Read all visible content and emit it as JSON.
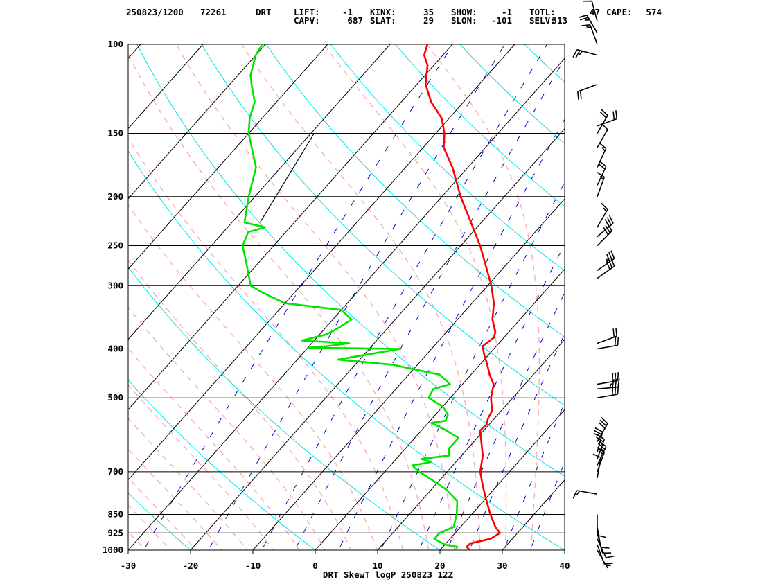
{
  "header": {
    "line1": [
      {
        "text": "250823/1200"
      },
      {
        "text": "72261"
      },
      {
        "text": "DRT"
      },
      {
        "text": "LIFT:"
      },
      {
        "text": "-1"
      },
      {
        "text": "KINX:"
      },
      {
        "text": "35"
      },
      {
        "text": "SHOW:"
      },
      {
        "text": "-1"
      },
      {
        "text": "TOTL:"
      },
      {
        "text": "47"
      },
      {
        "text": "CAPE:"
      },
      {
        "text": "574"
      }
    ],
    "line2": [
      {
        "text": "CAPV:"
      },
      {
        "text": "687"
      },
      {
        "text": "SLAT:"
      },
      {
        "text": "29"
      },
      {
        "text": "SLON:"
      },
      {
        "text": "-101"
      },
      {
        "text": "SELV:"
      },
      {
        "text": "313"
      }
    ]
  },
  "chart_data": {
    "type": "line",
    "title": "DRT SkewT logP 250823 12Z",
    "xlabel": "",
    "ylabel": "",
    "x_axis": {
      "label_values": [
        -30,
        -20,
        -10,
        0,
        10,
        20,
        30,
        40
      ],
      "range": [
        -30,
        40
      ],
      "units": "degC"
    },
    "y_axis": {
      "label_values": [
        100,
        150,
        200,
        250,
        300,
        400,
        500,
        700,
        850,
        925,
        1000
      ],
      "range": [
        1000,
        100
      ],
      "scale": "log",
      "units": "hPa"
    },
    "colors": {
      "temperature": "#ff0000",
      "dewpoint": "#00e400",
      "dry_adiabats": "#00e5e5",
      "moist_adiabats": "#ffaab4",
      "mixing_ratio": "#0000cd",
      "isotherms": "#000000",
      "isobars": "#000000",
      "parcel": "#000000",
      "wind_barbs": "#000000"
    },
    "series": [
      {
        "key": "temperature",
        "points": [
          [
            1000,
            24.8
          ],
          [
            985,
            23.8
          ],
          [
            970,
            23.9
          ],
          [
            950,
            26.5
          ],
          [
            925,
            27.2
          ],
          [
            900,
            25.6
          ],
          [
            850,
            23.0
          ],
          [
            800,
            20.5
          ],
          [
            750,
            17.9
          ],
          [
            700,
            15.3
          ],
          [
            650,
            13.4
          ],
          [
            600,
            10.6
          ],
          [
            580,
            9.4
          ],
          [
            565,
            9.6
          ],
          [
            550,
            9.0
          ],
          [
            530,
            8.5
          ],
          [
            500,
            6.5
          ],
          [
            470,
            5.0
          ],
          [
            450,
            3.0
          ],
          [
            430,
            1.2
          ],
          [
            410,
            -0.8
          ],
          [
            395,
            -2.2
          ],
          [
            380,
            -1.6
          ],
          [
            370,
            -2.2
          ],
          [
            350,
            -4.4
          ],
          [
            325,
            -6.5
          ],
          [
            300,
            -9.4
          ],
          [
            250,
            -16.9
          ],
          [
            200,
            -27.0
          ],
          [
            175,
            -32.5
          ],
          [
            160,
            -36.7
          ],
          [
            150,
            -38.6
          ],
          [
            140,
            -41.2
          ],
          [
            130,
            -45.2
          ],
          [
            120,
            -48.6
          ],
          [
            110,
            -51.0
          ],
          [
            105,
            -53.0
          ],
          [
            100,
            -54.0
          ]
        ]
      },
      {
        "key": "dewpoint",
        "points": [
          [
            1000,
            22.5
          ],
          [
            985,
            22.3
          ],
          [
            975,
            20.0
          ],
          [
            950,
            17.5
          ],
          [
            925,
            17.5
          ],
          [
            900,
            18.9
          ],
          [
            850,
            17.6
          ],
          [
            800,
            15.8
          ],
          [
            760,
            12.5
          ],
          [
            720,
            8.0
          ],
          [
            700,
            5.5
          ],
          [
            680,
            3.5
          ],
          [
            670,
            6.0
          ],
          [
            660,
            4.0
          ],
          [
            650,
            8.0
          ],
          [
            630,
            7.0
          ],
          [
            600,
            7.0
          ],
          [
            580,
            4.0
          ],
          [
            560,
            0.5
          ],
          [
            555,
            2.5
          ],
          [
            540,
            2.0
          ],
          [
            520,
            0.0
          ],
          [
            500,
            -3.5
          ],
          [
            480,
            -4.0
          ],
          [
            470,
            -2.0
          ],
          [
            450,
            -5.0
          ],
          [
            430,
            -14.0
          ],
          [
            420,
            -23.5
          ],
          [
            400,
            -15.0
          ],
          [
            398,
            -30.0
          ],
          [
            395,
            -27.0
          ],
          [
            390,
            -24.0
          ],
          [
            385,
            -32.0
          ],
          [
            375,
            -29.0
          ],
          [
            365,
            -28.0
          ],
          [
            350,
            -27.0
          ],
          [
            335,
            -30.0
          ],
          [
            325,
            -40.0
          ],
          [
            310,
            -45.0
          ],
          [
            300,
            -48.0
          ],
          [
            270,
            -52.0
          ],
          [
            250,
            -55.0
          ],
          [
            235,
            -56.0
          ],
          [
            230,
            -54.0
          ],
          [
            225,
            -58.0
          ],
          [
            200,
            -61.0
          ],
          [
            175,
            -64.0
          ],
          [
            150,
            -70.0
          ],
          [
            140,
            -72.0
          ],
          [
            130,
            -73.5
          ],
          [
            120,
            -76.5
          ],
          [
            115,
            -78.0
          ],
          [
            105,
            -80.0
          ],
          [
            100,
            -80.5
          ]
        ]
      },
      {
        "key": "parcel",
        "points": [
          [
            225,
            -55.5
          ],
          [
            150,
            -59.5
          ]
        ]
      }
    ],
    "wind_barbs": [
      {
        "pressure": 1000,
        "direction": 150,
        "speed": 5
      },
      {
        "pressure": 975,
        "direction": 160,
        "speed": 10
      },
      {
        "pressure": 950,
        "direction": 155,
        "speed": 10
      },
      {
        "pressure": 925,
        "direction": 165,
        "speed": 10
      },
      {
        "pressure": 900,
        "direction": 170,
        "speed": 10
      },
      {
        "pressure": 850,
        "direction": 180,
        "speed": 10
      },
      {
        "pressure": 775,
        "direction": 280,
        "speed": 15
      },
      {
        "pressure": 720,
        "direction": 10,
        "speed": 10
      },
      {
        "pressure": 700,
        "direction": 20,
        "speed": 15
      },
      {
        "pressure": 680,
        "direction": 25,
        "speed": 25
      },
      {
        "pressure": 660,
        "direction": 20,
        "speed": 25
      },
      {
        "pressure": 640,
        "direction": 15,
        "speed": 30
      },
      {
        "pressure": 610,
        "direction": 30,
        "speed": 30
      },
      {
        "pressure": 500,
        "direction": 80,
        "speed": 30
      },
      {
        "pressure": 480,
        "direction": 85,
        "speed": 35
      },
      {
        "pressure": 470,
        "direction": 80,
        "speed": 30
      },
      {
        "pressure": 400,
        "direction": 80,
        "speed": 20
      },
      {
        "pressure": 390,
        "direction": 70,
        "speed": 20
      },
      {
        "pressure": 290,
        "direction": 55,
        "speed": 30
      },
      {
        "pressure": 280,
        "direction": 55,
        "speed": 35
      },
      {
        "pressure": 250,
        "direction": 45,
        "speed": 30
      },
      {
        "pressure": 240,
        "direction": 50,
        "speed": 30
      },
      {
        "pressure": 230,
        "direction": 30,
        "speed": 15
      },
      {
        "pressure": 200,
        "direction": 20,
        "speed": 15
      },
      {
        "pressure": 190,
        "direction": 25,
        "speed": 20
      },
      {
        "pressure": 175,
        "direction": 25,
        "speed": 15
      },
      {
        "pressure": 160,
        "direction": 30,
        "speed": 10
      },
      {
        "pressure": 150,
        "direction": 30,
        "speed": 20
      },
      {
        "pressure": 145,
        "direction": 70,
        "speed": 20
      },
      {
        "pressure": 120,
        "direction": 250,
        "speed": 20
      },
      {
        "pressure": 105,
        "direction": 285,
        "speed": 25
      },
      {
        "pressure": 100,
        "direction": 340,
        "speed": 15
      },
      {
        "pressure": 95,
        "direction": 330,
        "speed": 25
      },
      {
        "pressure": 90,
        "direction": 345,
        "speed": 10
      }
    ]
  }
}
